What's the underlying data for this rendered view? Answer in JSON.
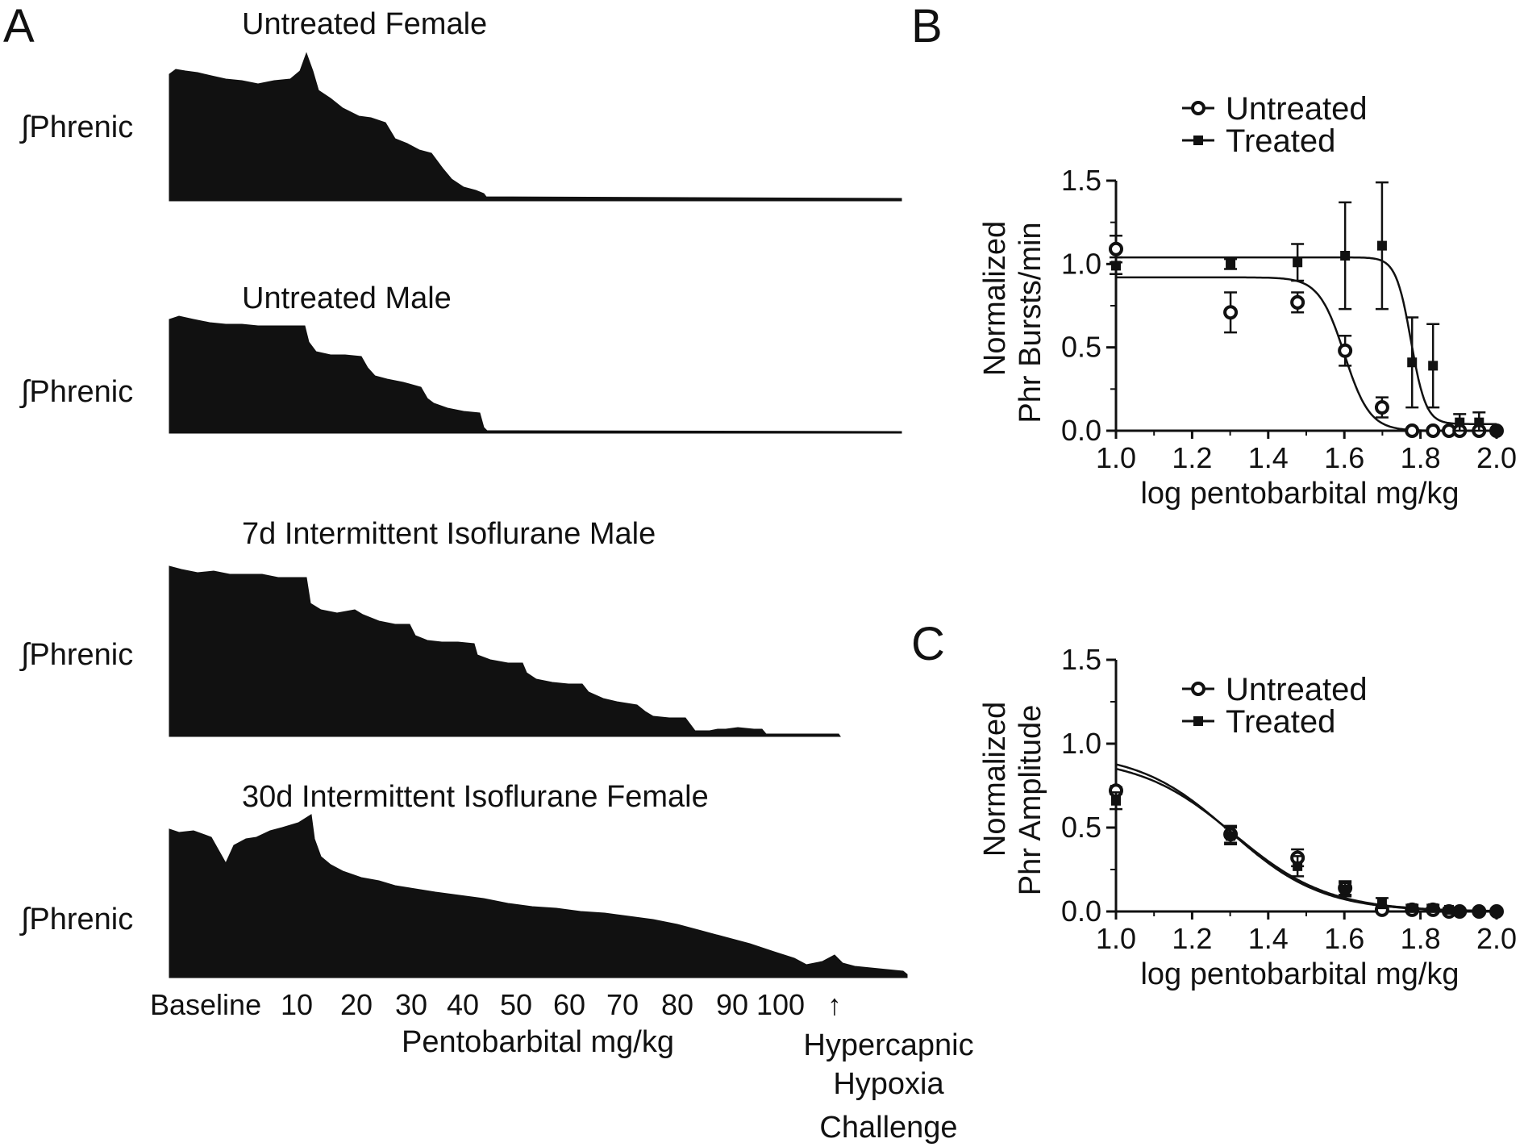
{
  "panel_letters": {
    "a": "A",
    "b": "B",
    "c": "C"
  },
  "panel_a": {
    "traces": [
      {
        "title": "Untreated Female",
        "ylabel": "∫Phrenic"
      },
      {
        "title": "Untreated Male",
        "ylabel": "∫Phrenic"
      },
      {
        "title": "7d Intermittent Isoflurane Male",
        "ylabel": "∫Phrenic"
      },
      {
        "title": "30d Intermittent Isoflurane Female",
        "ylabel": "∫Phrenic"
      }
    ],
    "dose_ticks": [
      "Baseline",
      "10",
      "20",
      "30",
      "40",
      "50",
      "60",
      "70",
      "80",
      "90",
      "100",
      "↑"
    ],
    "xlabel": "Pentobarbital mg/kg",
    "challenge_label": [
      "Hypercapnic",
      "Hypoxia",
      "Challenge"
    ]
  },
  "colors": {
    "ink": "#111111",
    "background": "#ffffff"
  },
  "chart_data": [
    {
      "panel": "B",
      "type": "scatter",
      "xlabel": "log pentobarbital mg/kg",
      "ylabel": [
        "Normalized",
        "Phr Bursts/min"
      ],
      "xlim": [
        1.0,
        2.0
      ],
      "ylim": [
        0.0,
        1.5
      ],
      "xticks": [
        "1.0",
        "1.2",
        "1.4",
        "1.6",
        "1.8",
        "2.0"
      ],
      "yticks": [
        "0.0",
        "0.5",
        "1.0",
        "1.5"
      ],
      "legend_position": "top",
      "series": [
        {
          "name": "Untreated",
          "marker": "open-circle",
          "x": [
            1.0,
            1.301,
            1.477,
            1.602,
            1.699,
            1.778,
            1.833,
            1.875,
            1.903,
            1.954,
            2.0
          ],
          "y": [
            1.09,
            0.71,
            0.77,
            0.48,
            0.14,
            0.0,
            0.0,
            0.0,
            0.0,
            0.0,
            0.0
          ],
          "err": [
            0.08,
            0.12,
            0.06,
            0.09,
            0.06,
            0.0,
            0.0,
            0.0,
            0.0,
            0.0,
            0.0
          ],
          "fit": {
            "top": 0.92,
            "bottom": 0.0,
            "log_ec50": 1.6,
            "hill": -13
          }
        },
        {
          "name": "Treated",
          "marker": "filled-square",
          "x": [
            1.0,
            1.301,
            1.477,
            1.602,
            1.699,
            1.778,
            1.833,
            1.903,
            1.954,
            2.0
          ],
          "y": [
            0.99,
            1.0,
            1.01,
            1.05,
            1.11,
            0.41,
            0.39,
            0.05,
            0.05,
            0.0
          ],
          "err": [
            0.05,
            0.03,
            0.11,
            0.32,
            0.38,
            0.27,
            0.25,
            0.05,
            0.06,
            0.0
          ],
          "fit": {
            "top": 1.04,
            "bottom": 0.04,
            "log_ec50": 1.775,
            "hill": -22
          }
        }
      ]
    },
    {
      "panel": "C",
      "type": "scatter",
      "xlabel": "log pentobarbital mg/kg",
      "ylabel": [
        "Normalized",
        "Phr Amplitude"
      ],
      "xlim": [
        1.0,
        2.0
      ],
      "ylim": [
        0.0,
        1.5
      ],
      "xticks": [
        "1.0",
        "1.2",
        "1.4",
        "1.6",
        "1.8",
        "2.0"
      ],
      "yticks": [
        "0.0",
        "0.5",
        "1.0",
        "1.5"
      ],
      "legend_position": "top",
      "series": [
        {
          "name": "Untreated",
          "marker": "open-circle",
          "x": [
            1.0,
            1.301,
            1.477,
            1.602,
            1.699,
            1.778,
            1.833,
            1.875,
            1.903,
            1.954,
            2.0
          ],
          "y": [
            0.72,
            0.46,
            0.32,
            0.14,
            0.01,
            0.01,
            0.01,
            0.0,
            0.0,
            0.0,
            0.0
          ],
          "err": [
            0.02,
            0.05,
            0.05,
            0.04,
            0.02,
            0.01,
            0.01,
            0.0,
            0.0,
            0.0,
            0.0
          ],
          "fit": {
            "top": 0.95,
            "bottom": 0.0,
            "log_ec50": 1.3,
            "hill": -3.6
          }
        },
        {
          "name": "Treated",
          "marker": "filled-square",
          "x": [
            1.0,
            1.301,
            1.477,
            1.602,
            1.699,
            1.778,
            1.833,
            1.875,
            1.903,
            1.954,
            2.0
          ],
          "y": [
            0.66,
            0.45,
            0.27,
            0.13,
            0.05,
            0.02,
            0.02,
            0.01,
            0.0,
            0.0,
            0.0
          ],
          "err": [
            0.05,
            0.05,
            0.06,
            0.04,
            0.03,
            0.02,
            0.02,
            0.01,
            0.0,
            0.0,
            0.0
          ],
          "fit": {
            "top": 0.92,
            "bottom": 0.0,
            "log_ec50": 1.31,
            "hill": -3.5
          }
        }
      ]
    }
  ]
}
